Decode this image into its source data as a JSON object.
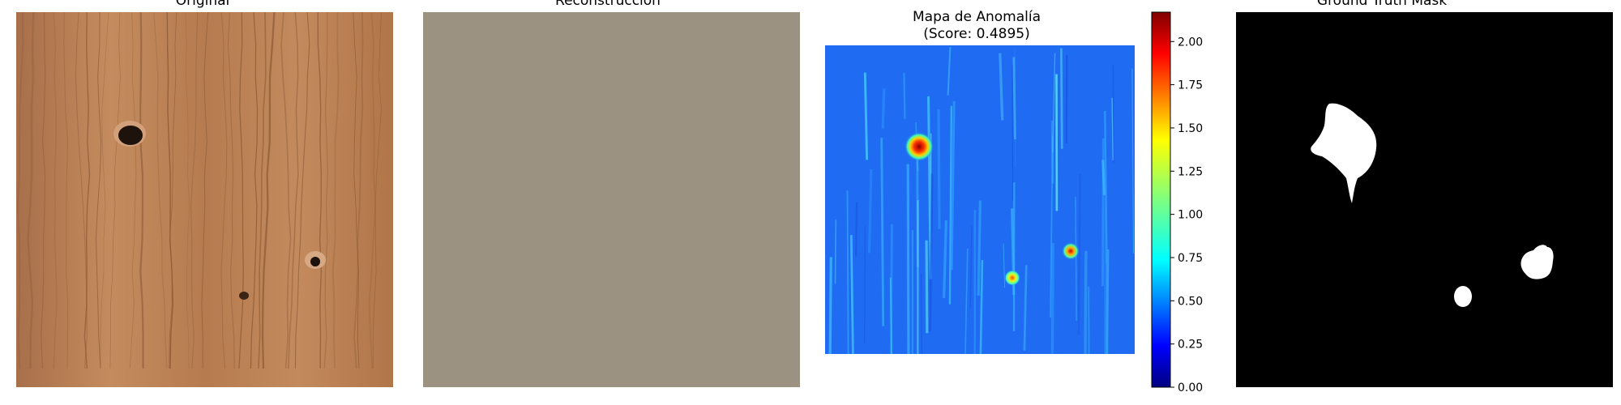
{
  "panels": {
    "original": {
      "title": "Original"
    },
    "reconstruction": {
      "title": "Reconstrucción",
      "fill_color": "#9b9282"
    },
    "anomaly": {
      "title_line1": "Mapa de Anomalía",
      "title_line2": "(Score: 0.4895)"
    },
    "mask": {
      "title": "Ground Truth Mask"
    }
  },
  "colors": {
    "wood_base": "#b57a4e",
    "wood_light": "#c99266",
    "wood_dark": "#6b3f22",
    "anomaly_base": "#1f6cf2",
    "mask_background": "#000000",
    "mask_foreground": "#ffffff"
  },
  "chart_data": [
    {
      "type": "heatmap",
      "title": "Mapa de Anomalía\n(Score: 0.4895)",
      "colormap": "jet",
      "score": 0.4895,
      "colorbar": {
        "range": [
          0.0,
          2.17
        ],
        "ticks": [
          0.0,
          0.25,
          0.5,
          0.75,
          1.0,
          1.25,
          1.5,
          1.75,
          2.0
        ],
        "tick_labels": [
          "0.00",
          "0.25",
          "0.50",
          "0.75",
          "1.00",
          "1.25",
          "1.50",
          "1.75",
          "2.00"
        ]
      },
      "hotspots": [
        {
          "location": "upper-left knot",
          "peak_value": 2.1
        },
        {
          "location": "right knot",
          "peak_value": 1.8
        },
        {
          "location": "lower-middle knot",
          "peak_value": 1.4
        }
      ],
      "background_level": 0.45
    }
  ]
}
